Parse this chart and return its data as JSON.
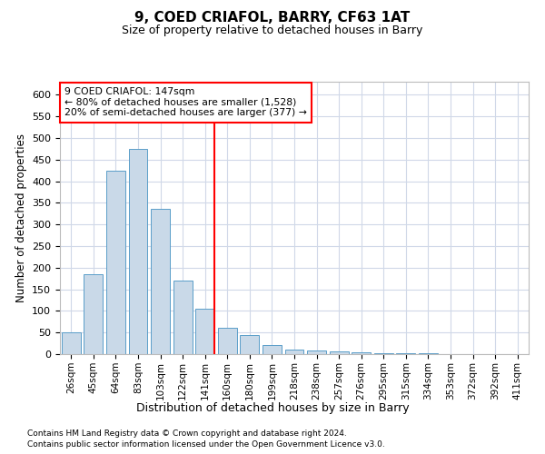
{
  "title": "9, COED CRIAFOL, BARRY, CF63 1AT",
  "subtitle": "Size of property relative to detached houses in Barry",
  "xlabel": "Distribution of detached houses by size in Barry",
  "ylabel": "Number of detached properties",
  "categories": [
    "26sqm",
    "45sqm",
    "64sqm",
    "83sqm",
    "103sqm",
    "122sqm",
    "141sqm",
    "160sqm",
    "180sqm",
    "199sqm",
    "218sqm",
    "238sqm",
    "257sqm",
    "276sqm",
    "295sqm",
    "315sqm",
    "334sqm",
    "353sqm",
    "372sqm",
    "392sqm",
    "411sqm"
  ],
  "values": [
    50,
    185,
    425,
    475,
    335,
    170,
    105,
    60,
    45,
    20,
    10,
    8,
    6,
    5,
    3,
    2,
    2,
    1,
    1,
    1,
    0
  ],
  "bar_color": "#c9d9e8",
  "bar_edge_color": "#5a9ec9",
  "red_line_index": 6,
  "red_line_label": "9 COED CRIAFOL: 147sqm",
  "annotation_line1": "← 80% of detached houses are smaller (1,528)",
  "annotation_line2": "20% of semi-detached houses are larger (377) →",
  "ylim": [
    0,
    630
  ],
  "yticks": [
    0,
    50,
    100,
    150,
    200,
    250,
    300,
    350,
    400,
    450,
    500,
    550,
    600
  ],
  "footnote1": "Contains HM Land Registry data © Crown copyright and database right 2024.",
  "footnote2": "Contains public sector information licensed under the Open Government Licence v3.0.",
  "background_color": "#ffffff",
  "grid_color": "#d0d8e8"
}
